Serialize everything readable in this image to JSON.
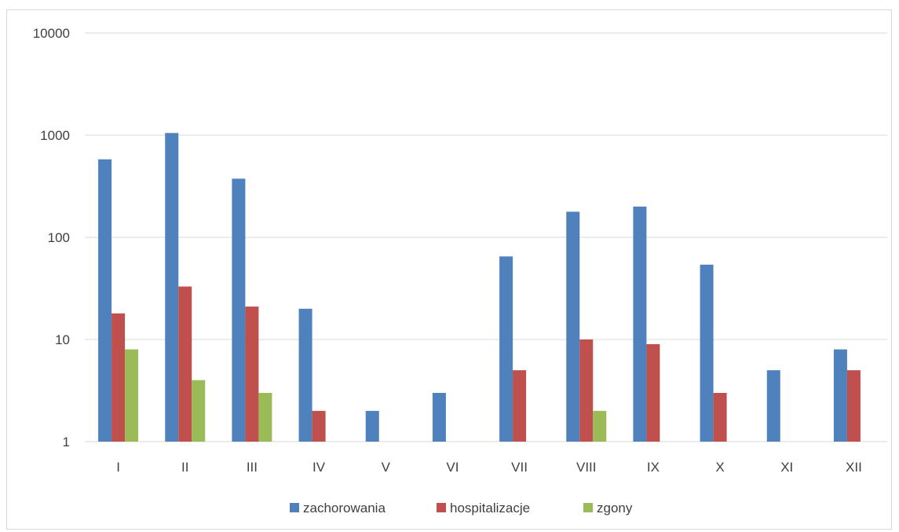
{
  "chart_data": {
    "type": "bar",
    "y_scale": "log",
    "ylim": [
      1,
      10000
    ],
    "y_ticks": [
      1,
      10,
      100,
      1000,
      10000
    ],
    "y_tick_labels": [
      "1",
      "10",
      "100",
      "1000",
      "10000"
    ],
    "grid": true,
    "legend_position": "bottom",
    "categories": [
      "I",
      "II",
      "III",
      "IV",
      "V",
      "VI",
      "VII",
      "VIII",
      "IX",
      "X",
      "XI",
      "XII"
    ],
    "series": [
      {
        "name": "zachorowania",
        "color": "#4f81bd",
        "values": [
          580,
          1050,
          375,
          20,
          2,
          3,
          65,
          178,
          200,
          54,
          5,
          8
        ]
      },
      {
        "name": "hospitalizacje",
        "color": "#c0504d",
        "values": [
          18,
          33,
          21,
          2,
          null,
          null,
          5,
          10,
          9,
          3,
          null,
          5
        ]
      },
      {
        "name": "zgony",
        "color": "#9bbb59",
        "values": [
          8,
          4,
          3,
          null,
          null,
          null,
          null,
          2,
          null,
          null,
          null,
          null
        ]
      }
    ]
  }
}
